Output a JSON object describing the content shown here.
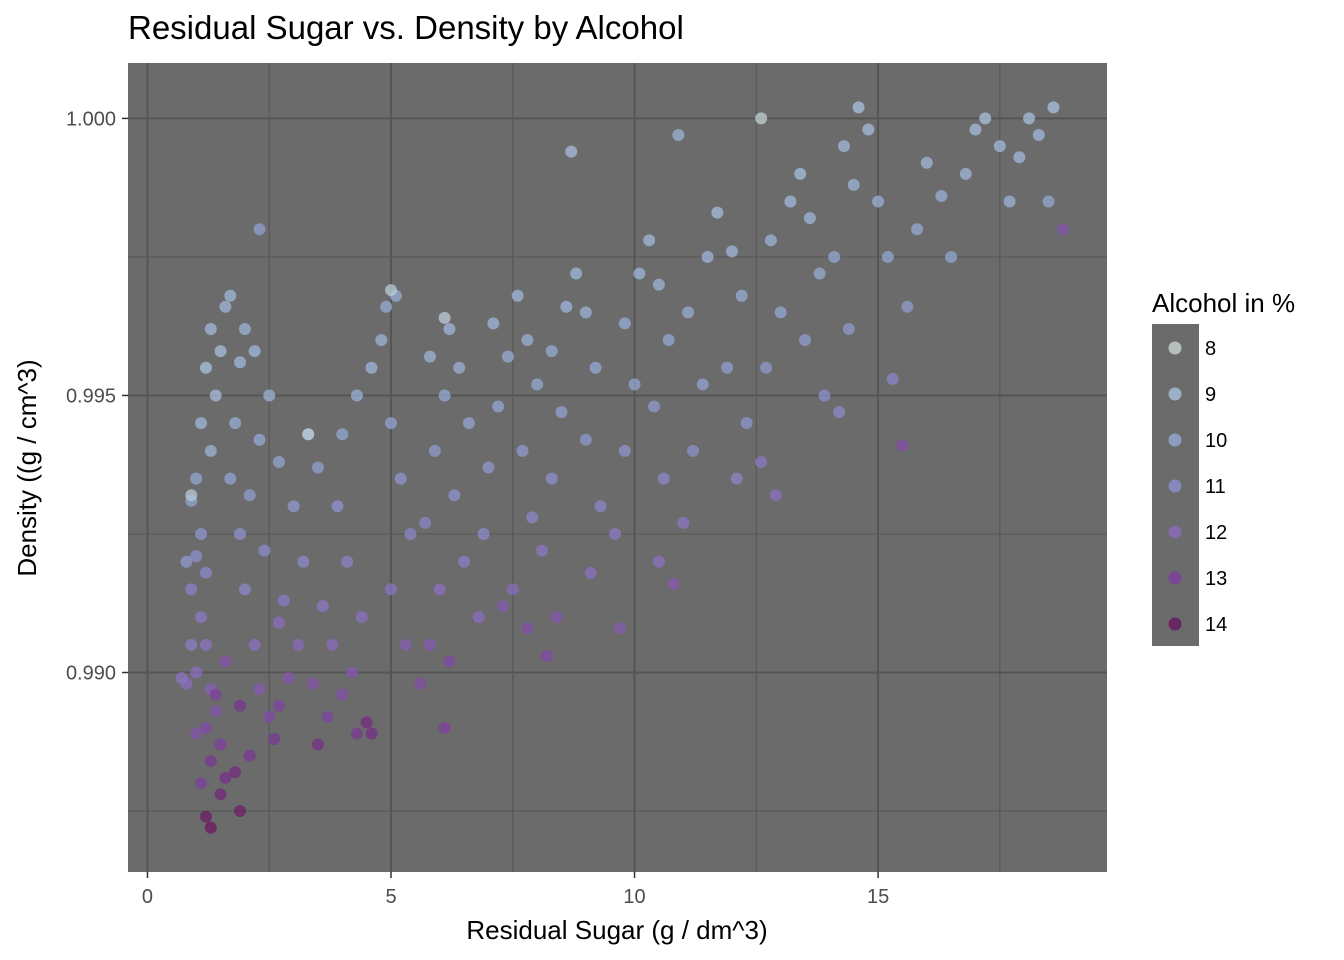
{
  "chart_data": {
    "type": "scatter",
    "title": "Residual Sugar vs. Density by Alcohol",
    "xlabel": "Residual Sugar (g / dm^3)",
    "ylabel": "Density ((g / cm^3)",
    "xlim": [
      -0.4,
      19.7
    ],
    "ylim": [
      0.9864,
      1.001
    ],
    "x_ticks": [
      0,
      5,
      10,
      15
    ],
    "x_tick_labels": [
      "0",
      "5",
      "10",
      "15"
    ],
    "y_ticks": [
      0.99,
      0.995,
      1.0
    ],
    "y_tick_labels": [
      "0.990",
      "0.995",
      "1.000"
    ],
    "grid": true,
    "panel_background": "#6b6b6b",
    "grid_color": "#555555",
    "color_by": "alcohol",
    "legend": {
      "title": "Alcohol in %",
      "position": "right",
      "values": [
        8,
        9,
        10,
        11,
        12,
        13,
        14
      ],
      "labels": [
        "8",
        "9",
        "10",
        "11",
        "12",
        "13",
        "14"
      ],
      "colors": [
        "#c8d4d0",
        "#a9c1de",
        "#93a9d3",
        "#8c90cc",
        "#8b6cbf",
        "#7d3f9e",
        "#69175f"
      ]
    },
    "points": [
      [
        0.9,
        0.9931,
        10.2
      ],
      [
        1.0,
        0.9935,
        10.0
      ],
      [
        1.1,
        0.9925,
        10.8
      ],
      [
        1.2,
        0.9918,
        11.2
      ],
      [
        1.3,
        0.994,
        9.6
      ],
      [
        1.1,
        0.9945,
        9.4
      ],
      [
        1.4,
        0.995,
        9.2
      ],
      [
        1.2,
        0.9955,
        9.0
      ],
      [
        1.5,
        0.9958,
        9.1
      ],
      [
        1.3,
        0.9962,
        9.3
      ],
      [
        1.6,
        0.9966,
        9.5
      ],
      [
        1.7,
        0.9968,
        9.4
      ],
      [
        1.0,
        0.9921,
        11.0
      ],
      [
        0.9,
        0.9915,
        11.4
      ],
      [
        1.1,
        0.991,
        11.6
      ],
      [
        1.2,
        0.9905,
        11.8
      ],
      [
        1.0,
        0.99,
        12.0
      ],
      [
        1.3,
        0.9897,
        12.3
      ],
      [
        1.4,
        0.9893,
        12.6
      ],
      [
        1.2,
        0.989,
        12.8
      ],
      [
        1.5,
        0.9887,
        13.0
      ],
      [
        1.3,
        0.9884,
        13.2
      ],
      [
        1.6,
        0.9881,
        13.4
      ],
      [
        1.5,
        0.9878,
        13.6
      ],
      [
        1.2,
        0.9874,
        13.9
      ],
      [
        1.3,
        0.9872,
        14.0
      ],
      [
        1.9,
        0.9875,
        13.8
      ],
      [
        1.8,
        0.9882,
        13.5
      ],
      [
        2.1,
        0.9885,
        13.2
      ],
      [
        0.8,
        0.992,
        10.6
      ],
      [
        0.9,
        0.9905,
        11.5
      ],
      [
        0.8,
        0.9898,
        12.0
      ],
      [
        1.0,
        0.9889,
        12.6
      ],
      [
        1.1,
        0.988,
        13.0
      ],
      [
        1.7,
        0.9935,
        10.3
      ],
      [
        1.8,
        0.9945,
        9.8
      ],
      [
        1.9,
        0.9925,
        10.9
      ],
      [
        2.0,
        0.9915,
        11.3
      ],
      [
        2.2,
        0.9905,
        11.9
      ],
      [
        2.3,
        0.9897,
        12.4
      ],
      [
        2.5,
        0.9892,
        12.8
      ],
      [
        2.6,
        0.9888,
        13.2
      ],
      [
        2.7,
        0.9894,
        12.9
      ],
      [
        2.9,
        0.9899,
        12.5
      ],
      [
        3.1,
        0.9905,
        12.1
      ],
      [
        2.8,
        0.9913,
        11.6
      ],
      [
        2.4,
        0.9922,
        11.1
      ],
      [
        2.1,
        0.9932,
        10.5
      ],
      [
        2.3,
        0.9942,
        10.0
      ],
      [
        2.5,
        0.995,
        9.6
      ],
      [
        2.2,
        0.9958,
        9.4
      ],
      [
        2.0,
        0.9962,
        9.6
      ],
      [
        2.3,
        0.998,
        10.4
      ],
      [
        1.9,
        0.9956,
        9.3
      ],
      [
        2.7,
        0.9938,
        10.2
      ],
      [
        3.0,
        0.993,
        10.6
      ],
      [
        3.3,
        0.9943,
        10.0
      ],
      [
        3.5,
        0.9937,
        10.4
      ],
      [
        3.2,
        0.992,
        11.2
      ],
      [
        3.6,
        0.9912,
        11.7
      ],
      [
        3.8,
        0.9905,
        12.1
      ],
      [
        3.4,
        0.9898,
        12.6
      ],
      [
        3.7,
        0.9892,
        12.9
      ],
      [
        3.5,
        0.9887,
        13.4
      ],
      [
        4.0,
        0.9896,
        12.7
      ],
      [
        4.3,
        0.9889,
        13.2
      ],
      [
        4.5,
        0.9891,
        13.5
      ],
      [
        4.6,
        0.9889,
        13.4
      ],
      [
        4.2,
        0.99,
        12.5
      ],
      [
        4.4,
        0.991,
        11.9
      ],
      [
        4.1,
        0.992,
        11.4
      ],
      [
        3.9,
        0.993,
        10.9
      ],
      [
        4.0,
        0.9943,
        10.1
      ],
      [
        4.3,
        0.995,
        9.7
      ],
      [
        4.6,
        0.9955,
        9.5
      ],
      [
        4.8,
        0.996,
        9.6
      ],
      [
        5.1,
        0.9968,
        9.8
      ],
      [
        4.9,
        0.9966,
        9.9
      ],
      [
        5.0,
        0.9945,
        10.3
      ],
      [
        5.2,
        0.9935,
        10.8
      ],
      [
        5.4,
        0.9925,
        11.3
      ],
      [
        5.0,
        0.9915,
        11.8
      ],
      [
        5.3,
        0.9905,
        12.3
      ],
      [
        5.6,
        0.9898,
        12.7
      ],
      [
        5.8,
        0.9905,
        12.4
      ],
      [
        6.0,
        0.9915,
        11.9
      ],
      [
        5.7,
        0.9927,
        11.3
      ],
      [
        5.9,
        0.994,
        10.6
      ],
      [
        6.1,
        0.995,
        10.0
      ],
      [
        5.8,
        0.9957,
        9.6
      ],
      [
        6.2,
        0.9962,
        9.4
      ],
      [
        6.4,
        0.9955,
        9.7
      ],
      [
        6.6,
        0.9945,
        10.2
      ],
      [
        6.3,
        0.9932,
        10.9
      ],
      [
        6.5,
        0.992,
        11.5
      ],
      [
        6.8,
        0.991,
        12.0
      ],
      [
        6.2,
        0.9902,
        12.8
      ],
      [
        6.1,
        0.989,
        13.0
      ],
      [
        6.9,
        0.9925,
        11.2
      ],
      [
        7.0,
        0.9937,
        10.7
      ],
      [
        7.2,
        0.9948,
        10.1
      ],
      [
        7.4,
        0.9957,
        9.8
      ],
      [
        7.1,
        0.9963,
        9.5
      ],
      [
        7.6,
        0.9968,
        9.4
      ],
      [
        7.8,
        0.996,
        9.7
      ],
      [
        8.0,
        0.9952,
        10.0
      ],
      [
        7.7,
        0.994,
        10.6
      ],
      [
        7.9,
        0.9928,
        11.3
      ],
      [
        7.5,
        0.9915,
        12.1
      ],
      [
        7.3,
        0.9912,
        12.4
      ],
      [
        7.8,
        0.9908,
        12.7
      ],
      [
        8.4,
        0.991,
        12.5
      ],
      [
        8.2,
        0.9903,
        12.8
      ],
      [
        8.1,
        0.9922,
        11.7
      ],
      [
        8.3,
        0.9935,
        11.0
      ],
      [
        8.5,
        0.9947,
        10.3
      ],
      [
        8.3,
        0.9958,
        9.9
      ],
      [
        8.6,
        0.9966,
        9.5
      ],
      [
        8.8,
        0.9972,
        9.3
      ],
      [
        9.0,
        0.9965,
        9.6
      ],
      [
        9.2,
        0.9955,
        10.0
      ],
      [
        9.0,
        0.9942,
        10.7
      ],
      [
        9.3,
        0.993,
        11.3
      ],
      [
        9.1,
        0.9918,
        11.9
      ],
      [
        9.7,
        0.9908,
        12.4
      ],
      [
        9.6,
        0.9925,
        11.6
      ],
      [
        9.8,
        0.994,
        10.9
      ],
      [
        10.0,
        0.9952,
        10.2
      ],
      [
        9.8,
        0.9963,
        9.8
      ],
      [
        10.1,
        0.9972,
        9.5
      ],
      [
        10.3,
        0.9978,
        9.3
      ],
      [
        10.5,
        0.997,
        9.6
      ],
      [
        10.7,
        0.996,
        10.0
      ],
      [
        10.4,
        0.9948,
        10.6
      ],
      [
        10.6,
        0.9935,
        11.2
      ],
      [
        10.5,
        0.992,
        11.9
      ],
      [
        10.8,
        0.9916,
        12.4
      ],
      [
        11.0,
        0.9927,
        11.7
      ],
      [
        11.2,
        0.994,
        11.0
      ],
      [
        11.4,
        0.9952,
        10.3
      ],
      [
        11.1,
        0.9965,
        9.8
      ],
      [
        11.5,
        0.9975,
        9.5
      ],
      [
        11.7,
        0.9983,
        9.2
      ],
      [
        12.0,
        0.9976,
        9.5
      ],
      [
        12.2,
        0.9968,
        9.8
      ],
      [
        11.9,
        0.9955,
        10.4
      ],
      [
        12.3,
        0.9945,
        10.8
      ],
      [
        12.1,
        0.9935,
        11.3
      ],
      [
        12.6,
        0.9938,
        11.6
      ],
      [
        12.9,
        0.9932,
        11.9
      ],
      [
        12.7,
        0.9955,
        10.6
      ],
      [
        13.0,
        0.9965,
        10.0
      ],
      [
        12.8,
        0.9978,
        9.6
      ],
      [
        13.2,
        0.9985,
        9.3
      ],
      [
        13.4,
        0.999,
        9.1
      ],
      [
        13.6,
        0.9982,
        9.5
      ],
      [
        13.8,
        0.9972,
        9.9
      ],
      [
        13.5,
        0.996,
        10.5
      ],
      [
        13.9,
        0.995,
        11.0
      ],
      [
        14.2,
        0.9947,
        11.2
      ],
      [
        14.4,
        0.9962,
        10.6
      ],
      [
        14.1,
        0.9975,
        10.1
      ],
      [
        14.5,
        0.9988,
        9.6
      ],
      [
        14.3,
        0.9995,
        9.3
      ],
      [
        14.6,
        1.0002,
        9.0
      ],
      [
        14.8,
        0.9998,
        9.2
      ],
      [
        15.0,
        0.9985,
        9.7
      ],
      [
        15.2,
        0.9975,
        10.1
      ],
      [
        15.5,
        0.9941,
        12.7
      ],
      [
        15.3,
        0.9953,
        11.3
      ],
      [
        15.6,
        0.9966,
        10.5
      ],
      [
        15.8,
        0.998,
        9.9
      ],
      [
        16.0,
        0.9992,
        9.4
      ],
      [
        16.3,
        0.9986,
        9.7
      ],
      [
        16.5,
        0.9975,
        10.1
      ],
      [
        16.8,
        0.999,
        9.5
      ],
      [
        17.0,
        0.9998,
        9.2
      ],
      [
        17.2,
        1.0,
        9.0
      ],
      [
        17.5,
        0.9995,
        9.3
      ],
      [
        17.7,
        0.9985,
        9.6
      ],
      [
        17.9,
        0.9993,
        9.4
      ],
      [
        18.1,
        1.0,
        9.1
      ],
      [
        18.3,
        0.9997,
        9.3
      ],
      [
        18.6,
        1.0002,
        9.0
      ],
      [
        18.8,
        0.998,
        12.6
      ],
      [
        18.5,
        0.9985,
        10.0
      ],
      [
        12.6,
        1.0,
        8.2
      ],
      [
        6.1,
        0.9964,
        8.4
      ],
      [
        5.0,
        0.9969,
        8.5
      ],
      [
        3.3,
        0.9943,
        8.3
      ],
      [
        0.9,
        0.9932,
        8.6
      ],
      [
        8.7,
        0.9994,
        9.2
      ],
      [
        10.9,
        0.9997,
        9.6
      ],
      [
        2.7,
        0.9909,
        12.0
      ],
      [
        1.6,
        0.9902,
        12.6
      ],
      [
        1.4,
        0.9896,
        13.0
      ],
      [
        0.7,
        0.9899,
        11.8
      ],
      [
        1.9,
        0.9894,
        13.3
      ]
    ]
  }
}
